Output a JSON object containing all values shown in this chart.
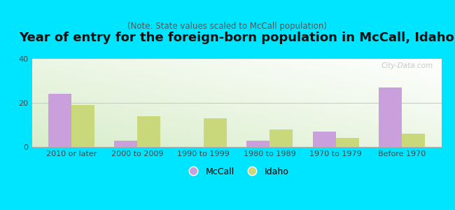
{
  "title": "Year of entry for the foreign-born population in McCall, Idaho",
  "subtitle": "(Note: State values scaled to McCall population)",
  "categories": [
    "2010 or later",
    "2000 to 2009",
    "1990 to 1999",
    "1980 to 1989",
    "1970 to 1979",
    "Before 1970"
  ],
  "mccall_values": [
    24,
    3,
    0,
    3,
    7,
    27
  ],
  "idaho_values": [
    19,
    14,
    13,
    8,
    4,
    6
  ],
  "mccall_color": "#c9a0dc",
  "idaho_color": "#c8d87a",
  "background_color": "#00e5ff",
  "ylim": [
    0,
    40
  ],
  "yticks": [
    0,
    20,
    40
  ],
  "bar_width": 0.35,
  "title_fontsize": 13,
  "subtitle_fontsize": 8.5,
  "tick_fontsize": 8,
  "legend_fontsize": 9,
  "watermark": "City-Data.com"
}
